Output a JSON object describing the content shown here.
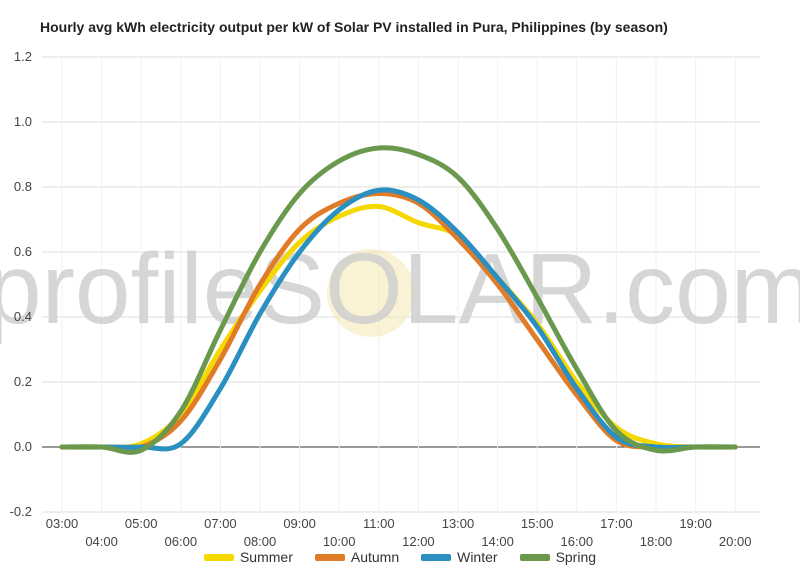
{
  "chart_data": {
    "type": "line",
    "title": "Hourly avg kWh electricity output per kW of Solar PV installed in Pura, Philippines (by season)",
    "xlabel": "",
    "ylabel": "",
    "ylim": [
      -0.2,
      1.2
    ],
    "yticks": [
      "1.2",
      "1.0",
      "0.8",
      "0.6",
      "0.4",
      "0.2",
      "0.0",
      "-0.2"
    ],
    "x": [
      "03:00",
      "04:00",
      "05:00",
      "06:00",
      "07:00",
      "08:00",
      "09:00",
      "10:00",
      "11:00",
      "12:00",
      "13:00",
      "14:00",
      "15:00",
      "16:00",
      "17:00",
      "18:00",
      "19:00",
      "20:00"
    ],
    "grid": true,
    "legend": "bottom",
    "watermark": "profileSOLAR.com",
    "series": [
      {
        "name": "Summer",
        "color": "#f5d800",
        "values": [
          0,
          0,
          0.01,
          0.1,
          0.3,
          0.48,
          0.63,
          0.71,
          0.74,
          0.69,
          0.65,
          0.52,
          0.38,
          0.2,
          0.06,
          0.01,
          0,
          0
        ]
      },
      {
        "name": "Autumn",
        "color": "#e07b28",
        "values": [
          0,
          0,
          0,
          0.08,
          0.27,
          0.5,
          0.67,
          0.75,
          0.78,
          0.75,
          0.64,
          0.5,
          0.33,
          0.16,
          0.02,
          0,
          0,
          0
        ]
      },
      {
        "name": "Winter",
        "color": "#2a8fc1",
        "values": [
          0,
          0,
          0,
          0.01,
          0.18,
          0.41,
          0.6,
          0.73,
          0.79,
          0.76,
          0.66,
          0.52,
          0.37,
          0.18,
          0.03,
          0,
          0,
          0
        ]
      },
      {
        "name": "Spring",
        "color": "#6a994e",
        "values": [
          0,
          0,
          -0.01,
          0.11,
          0.36,
          0.6,
          0.78,
          0.88,
          0.92,
          0.9,
          0.83,
          0.67,
          0.46,
          0.24,
          0.05,
          -0.01,
          0,
          0
        ]
      }
    ]
  }
}
